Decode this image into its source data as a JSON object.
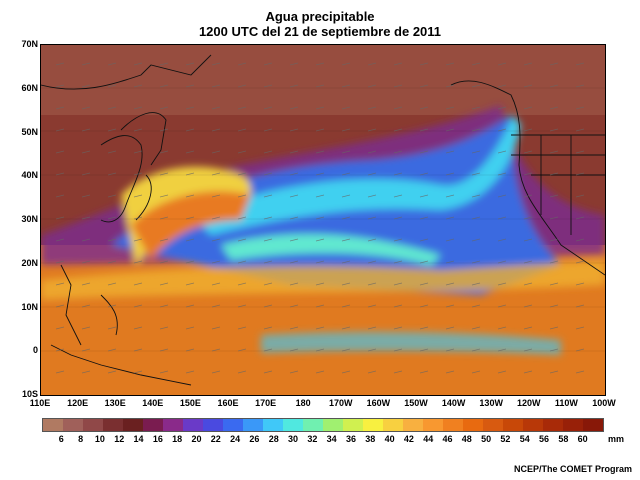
{
  "title": "Agua precipitable",
  "subtitle": "1200 UTC del 21 de septiembre de 2011",
  "lat_labels": [
    "70N",
    "60N",
    "50N",
    "40N",
    "30N",
    "20N",
    "10N",
    "0",
    "10S"
  ],
  "lon_labels": [
    "110E",
    "120E",
    "130E",
    "140E",
    "150E",
    "160E",
    "170E",
    "180",
    "170W",
    "160W",
    "150W",
    "140W",
    "130W",
    "120W",
    "110W",
    "100W"
  ],
  "colorbar": {
    "labels": [
      "6",
      "8",
      "10",
      "12",
      "14",
      "16",
      "18",
      "20",
      "22",
      "24",
      "26",
      "28",
      "30",
      "32",
      "34",
      "36",
      "38",
      "40",
      "42",
      "44",
      "46",
      "48",
      "50",
      "52",
      "54",
      "56",
      "58",
      "60"
    ],
    "unit": "mm",
    "colors": [
      "#b07a62",
      "#a0605a",
      "#904848",
      "#7a2f30",
      "#6a2020",
      "#7a1c50",
      "#8a2a8a",
      "#6a3ac8",
      "#4a4ae0",
      "#3a6af0",
      "#3a98f8",
      "#40c8f8",
      "#50e8e0",
      "#70f0b0",
      "#a0f070",
      "#d0f050",
      "#f8f040",
      "#f8d040",
      "#f8b040",
      "#f89830",
      "#f08020",
      "#e86a10",
      "#d85a10",
      "#c84808",
      "#b83808",
      "#a82a08",
      "#982008",
      "#881808"
    ]
  },
  "credit": "NCEP/The COMET Program"
}
